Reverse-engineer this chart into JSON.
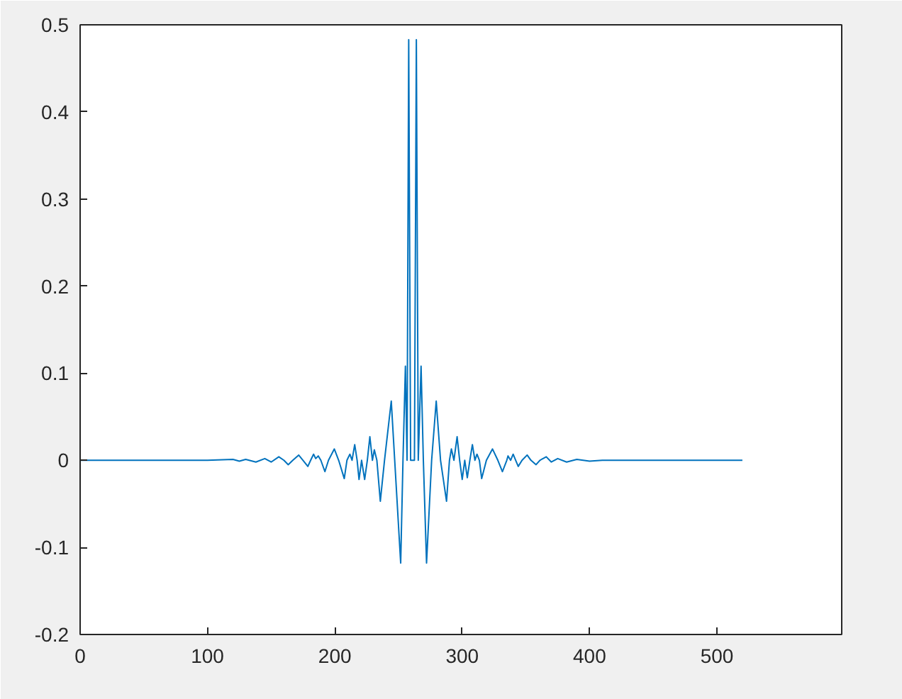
{
  "chart_data": {
    "type": "line",
    "xlim": [
      0,
      598
    ],
    "ylim": [
      -0.2,
      0.5
    ],
    "xticks": [
      0,
      100,
      200,
      300,
      400,
      500
    ],
    "yticks": [
      -0.2,
      -0.1,
      0,
      0.1,
      0.2,
      0.3,
      0.4,
      0.5
    ],
    "grid": false,
    "marker": "none",
    "line_style": "solid",
    "series": [
      {
        "color": "#0072bd",
        "x": [
          0,
          100,
          120,
          125,
          130,
          138,
          145,
          150,
          156,
          160,
          163.4,
          167,
          171.6,
          175,
          178.8,
          181,
          183.3,
          185,
          187,
          189,
          192.2,
          195,
          199.6,
          203,
          207.4,
          209.5,
          211.8,
          213.5,
          215.6,
          217.5,
          219,
          221,
          223.4,
          225.5,
          227.5,
          229.5,
          231,
          233,
          235.7,
          239,
          244.3,
          247,
          251.7,
          253.5,
          255.4,
          256.7,
          258,
          259.5,
          261,
          262.5,
          264,
          265.5,
          267.7,
          269.5,
          272,
          276,
          279.6,
          283,
          287.7,
          290,
          291.5,
          293.5,
          296,
          298,
          300,
          302,
          304,
          306,
          308,
          310,
          311.6,
          313.5,
          315.3,
          319,
          323.8,
          328,
          331.6,
          335,
          336,
          338,
          340,
          342,
          344,
          347,
          351,
          354,
          358,
          361,
          366,
          370,
          375,
          382,
          390,
          400,
          410,
          520
        ],
        "values": [
          0,
          0,
          0.001,
          -0.001,
          0.001,
          -0.002,
          0.002,
          -0.002,
          0.004,
          0,
          -0.005,
          0,
          0.006,
          0,
          -0.007,
          0,
          0.007,
          0.002,
          0.005,
          0,
          -0.013,
          0,
          0.013,
          0,
          -0.021,
          0,
          0.007,
          0,
          0.018,
          0,
          -0.022,
          0,
          -0.022,
          0,
          0.027,
          0,
          0.012,
          0,
          -0.047,
          0,
          0.068,
          0,
          -0.118,
          0,
          0.108,
          0,
          0.483,
          0,
          0,
          0,
          0.483,
          0,
          0.108,
          0,
          -0.118,
          0,
          0.068,
          0,
          -0.047,
          0,
          0.013,
          0,
          0.027,
          0,
          -0.022,
          0,
          -0.02,
          0,
          0.018,
          0,
          0.007,
          0,
          -0.021,
          0,
          0.013,
          0,
          -0.013,
          0,
          0.005,
          0,
          0.007,
          0,
          -0.007,
          0,
          0.006,
          0,
          -0.005,
          0,
          0.004,
          -0.002,
          0.002,
          -0.002,
          0.001,
          -0.001,
          0,
          0
        ]
      }
    ]
  }
}
